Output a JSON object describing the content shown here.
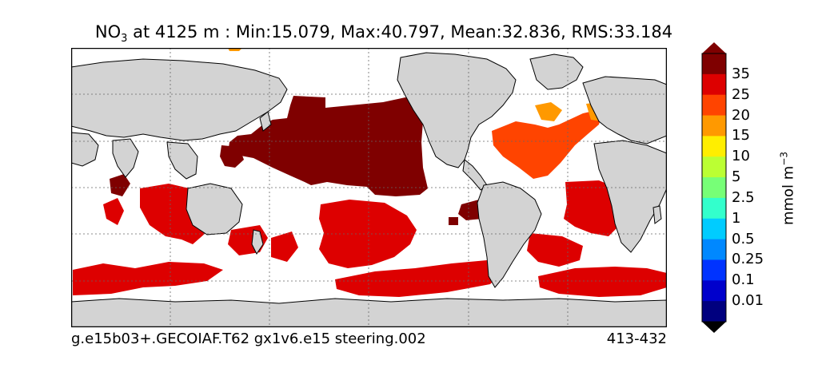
{
  "title": {
    "species": "NO",
    "species_sub": "3",
    "text": " at 4125 m : Min:15.079, Max:40.797, Mean:32.836, RMS:33.184"
  },
  "footer": {
    "case_name": "g.e15b03+.GECOIAF.T62 gx1v6.e15 steering.002",
    "years": "413-432"
  },
  "colorbar": {
    "units": "mmol m",
    "units_exp": "−3",
    "levels": [
      "0.01",
      "0.1",
      "0.25",
      "0.5",
      "1",
      "2.5",
      "5",
      "10",
      "15",
      "20",
      "25",
      "35"
    ],
    "colors": [
      "#00007f",
      "#0000cc",
      "#0033ff",
      "#0088ff",
      "#00ccff",
      "#33ffcc",
      "#77ff77",
      "#bbff33",
      "#ffee00",
      "#ff9900",
      "#ff4400",
      "#dd0000",
      "#7f0000"
    ],
    "extend": "both"
  },
  "map": {
    "land_color": "#d3d3d3",
    "ocean_nodata_color": "#ffffff",
    "field_colors": {
      "deep_pacific": "#7f0000",
      "southern_ocean": "#dd0000",
      "north_atlantic": "#ff4400",
      "nadw_core": "#ff9900"
    },
    "gridlines": "dotted"
  }
}
